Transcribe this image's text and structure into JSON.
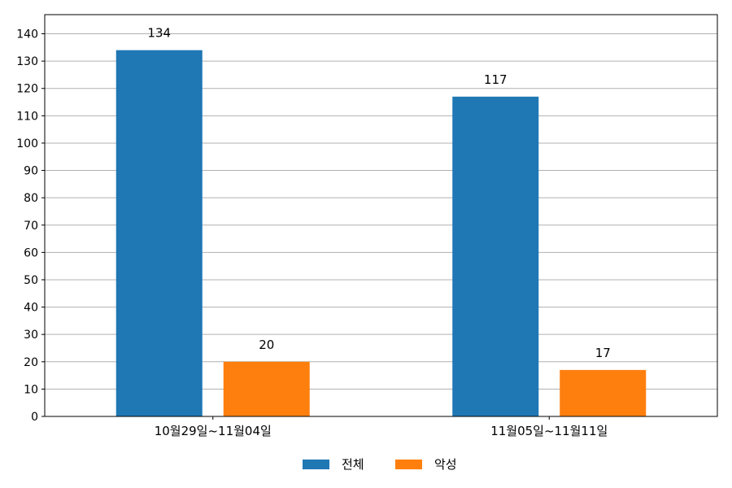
{
  "chart_data": {
    "type": "bar",
    "categories": [
      "10월29일~11월04일",
      "11월05일~11월11일"
    ],
    "series": [
      {
        "name": "전체",
        "values": [
          134,
          117
        ],
        "color": "#1f77b4"
      },
      {
        "name": "악성",
        "values": [
          20,
          17
        ],
        "color": "#ff7f0e"
      }
    ],
    "ylim": [
      0,
      147
    ],
    "yticks": [
      0,
      10,
      20,
      30,
      40,
      50,
      60,
      70,
      80,
      90,
      100,
      110,
      120,
      130,
      140
    ],
    "grid": true,
    "legend_position": "bottom-center"
  }
}
